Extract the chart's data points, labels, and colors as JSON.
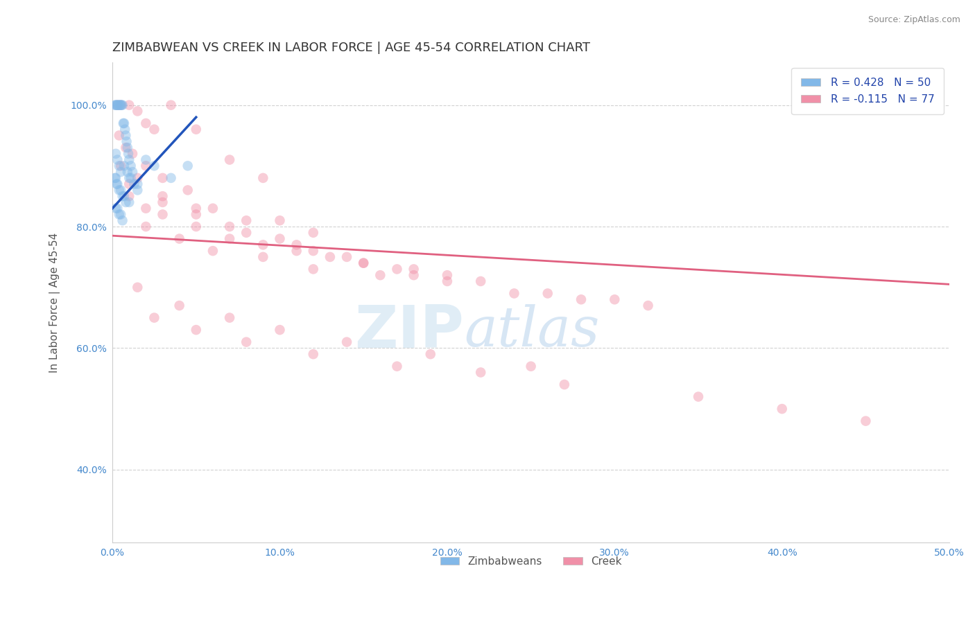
{
  "title": "ZIMBABWEAN VS CREEK IN LABOR FORCE | AGE 45-54 CORRELATION CHART",
  "source_text": "Source: ZipAtlas.com",
  "ylabel": "In Labor Force | Age 45-54",
  "xlim": [
    0.0,
    50.0
  ],
  "ylim": [
    28.0,
    107.0
  ],
  "xtick_labels": [
    "0.0%",
    "10.0%",
    "20.0%",
    "30.0%",
    "40.0%",
    "50.0%"
  ],
  "xtick_vals": [
    0,
    10,
    20,
    30,
    40,
    50
  ],
  "ytick_labels": [
    "40.0%",
    "60.0%",
    "80.0%",
    "100.0%"
  ],
  "ytick_vals": [
    40,
    60,
    80,
    100
  ],
  "legend_entries": [
    {
      "label": "R = 0.428   N = 50",
      "color": "#aec6e8"
    },
    {
      "label": "R = -0.115   N = 77",
      "color": "#f4b8c8"
    }
  ],
  "bottom_legend": [
    {
      "label": "Zimbabweans",
      "color": "#aec6e8"
    },
    {
      "label": "Creek",
      "color": "#f4b8c8"
    }
  ],
  "blue_scatter_x": [
    0.15,
    0.2,
    0.25,
    0.3,
    0.35,
    0.4,
    0.45,
    0.5,
    0.55,
    0.6,
    0.65,
    0.7,
    0.75,
    0.8,
    0.85,
    0.9,
    0.95,
    1.0,
    1.1,
    1.2,
    0.15,
    0.2,
    0.25,
    0.3,
    0.4,
    0.5,
    0.6,
    0.7,
    0.8,
    1.0,
    0.2,
    0.3,
    0.4,
    0.5,
    0.6,
    0.7,
    0.9,
    1.1,
    1.3,
    1.5,
    0.2,
    0.3,
    0.4,
    0.5,
    1.0,
    1.5,
    2.0,
    2.5,
    3.5,
    4.5
  ],
  "blue_scatter_y": [
    100,
    100,
    100,
    100,
    100,
    100,
    100,
    100,
    100,
    100,
    97,
    97,
    96,
    95,
    94,
    93,
    92,
    91,
    90,
    89,
    88,
    88,
    87,
    87,
    86,
    86,
    85,
    85,
    84,
    84,
    83,
    83,
    82,
    82,
    81,
    90,
    89,
    88,
    87,
    86,
    92,
    91,
    90,
    89,
    88,
    87,
    91,
    90,
    88,
    90
  ],
  "pink_scatter_x": [
    0.3,
    0.5,
    1.0,
    1.5,
    2.0,
    2.5,
    3.5,
    5.0,
    7.0,
    9.0,
    0.4,
    0.8,
    1.2,
    2.0,
    3.0,
    4.5,
    6.0,
    8.0,
    10.0,
    12.0,
    1.0,
    2.0,
    3.0,
    5.0,
    7.0,
    9.0,
    11.0,
    13.0,
    15.0,
    17.0,
    0.5,
    1.5,
    3.0,
    5.0,
    7.0,
    10.0,
    12.0,
    15.0,
    18.0,
    20.0,
    2.0,
    4.0,
    6.0,
    9.0,
    12.0,
    16.0,
    20.0,
    24.0,
    28.0,
    32.0,
    1.0,
    3.0,
    5.0,
    8.0,
    11.0,
    14.0,
    18.0,
    22.0,
    26.0,
    30.0,
    2.5,
    5.0,
    8.0,
    12.0,
    17.0,
    22.0,
    27.0,
    35.0,
    40.0,
    45.0,
    1.5,
    4.0,
    7.0,
    10.0,
    14.0,
    19.0,
    25.0
  ],
  "pink_scatter_y": [
    100,
    100,
    100,
    99,
    97,
    96,
    100,
    96,
    91,
    88,
    95,
    93,
    92,
    90,
    88,
    86,
    83,
    81,
    81,
    79,
    85,
    83,
    82,
    80,
    78,
    77,
    76,
    75,
    74,
    73,
    90,
    88,
    85,
    83,
    80,
    78,
    76,
    74,
    72,
    72,
    80,
    78,
    76,
    75,
    73,
    72,
    71,
    69,
    68,
    67,
    87,
    84,
    82,
    79,
    77,
    75,
    73,
    71,
    69,
    68,
    65,
    63,
    61,
    59,
    57,
    56,
    54,
    52,
    50,
    48,
    70,
    67,
    65,
    63,
    61,
    59,
    57
  ],
  "blue_line_x": [
    0.0,
    5.0
  ],
  "blue_line_y": [
    83.0,
    98.0
  ],
  "pink_line_x": [
    0.0,
    50.0
  ],
  "pink_line_y": [
    78.5,
    70.5
  ],
  "scatter_size": 110,
  "scatter_alpha": 0.45,
  "blue_color": "#82b8e8",
  "pink_color": "#f090a8",
  "blue_line_color": "#2255bb",
  "pink_line_color": "#e06080",
  "grid_color": "#cccccc",
  "background_color": "#ffffff",
  "watermark_zip": "ZIP",
  "watermark_atlas": "atlas",
  "title_fontsize": 13,
  "axis_label_fontsize": 11,
  "tick_fontsize": 10,
  "legend_fontsize": 11,
  "source_fontsize": 9
}
